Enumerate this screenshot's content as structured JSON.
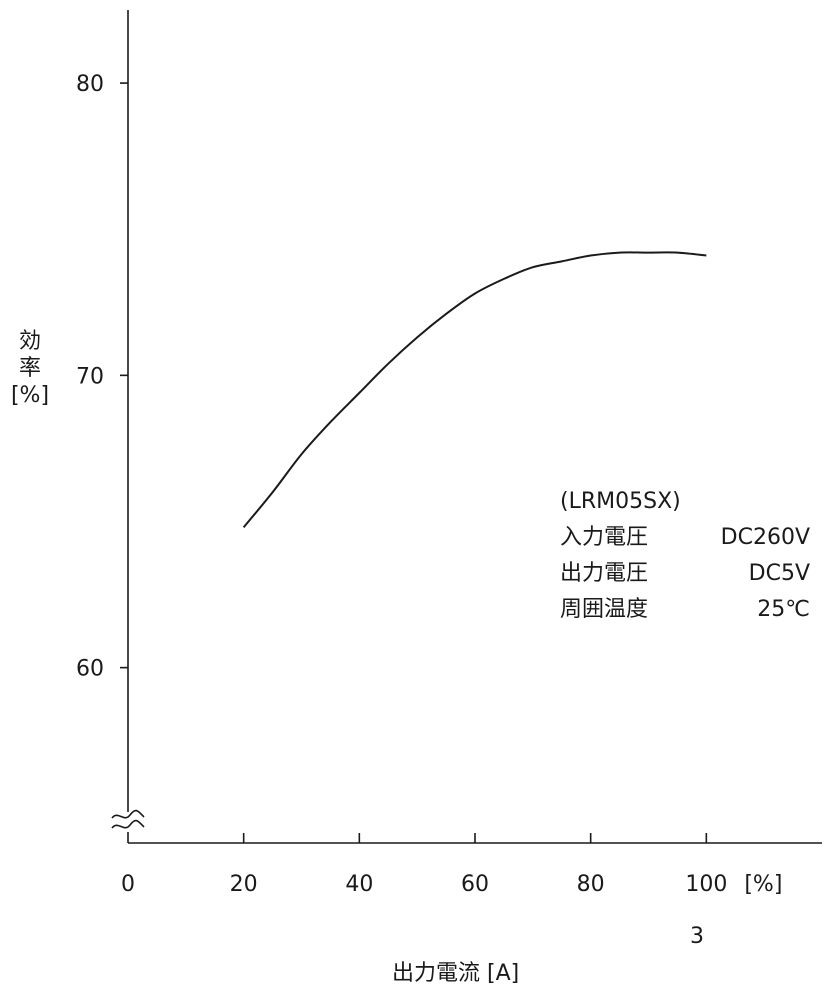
{
  "chart_data": {
    "type": "line",
    "xlabel": "出力電流 [A]",
    "ylabel_lines": [
      "効",
      "率",
      "[%]"
    ],
    "x_unit": "[%]",
    "x_ticks": [
      0,
      20,
      40,
      60,
      80,
      100
    ],
    "y_ticks": [
      60,
      70,
      80
    ],
    "xlim": [
      0,
      120
    ],
    "ylim": [
      54,
      82.5
    ],
    "axis_break": true,
    "grid": false,
    "legend_position": "right-middle",
    "series": [
      {
        "x": [
          20,
          25,
          30,
          35,
          40,
          45,
          50,
          55,
          60,
          65,
          70,
          75,
          80,
          85,
          90,
          95,
          100
        ],
        "y": [
          64.8,
          66.0,
          67.3,
          68.4,
          69.4,
          70.4,
          71.3,
          72.1,
          72.8,
          73.3,
          73.7,
          73.9,
          74.1,
          74.2,
          74.2,
          74.2,
          74.1
        ]
      }
    ],
    "annotation": {
      "model": "(LRM05SX)",
      "rows": [
        {
          "label": "入力電圧",
          "value": "DC260V"
        },
        {
          "label": "出力電圧",
          "value": "DC5V"
        },
        {
          "label": "周囲温度",
          "value": "25℃"
        }
      ]
    },
    "footnote": "3"
  }
}
